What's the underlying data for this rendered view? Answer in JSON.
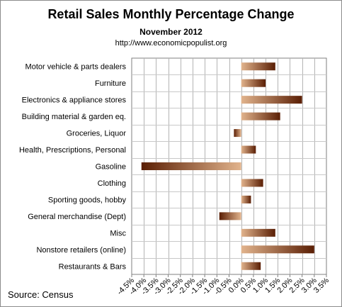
{
  "chart_data": {
    "type": "bar",
    "orientation": "horizontal",
    "title": "Retail Sales Monthly  Percentage Change",
    "subtitle": "November 2012",
    "source_url": "http://www.economicpopulist.org",
    "footer": "Source:  Census",
    "xlabel": "",
    "ylabel": "",
    "xlim": [
      -4.5,
      3.5
    ],
    "x_ticks": [
      -4.5,
      -4.0,
      -3.5,
      -3.0,
      -2.5,
      -2.0,
      -1.5,
      -1.0,
      -0.5,
      0.0,
      0.5,
      1.0,
      1.5,
      2.0,
      2.5,
      3.0,
      3.5
    ],
    "x_tick_labels": [
      "-4.5%",
      "-4.0%",
      "-3.5%",
      "-3.0%",
      "-2.5%",
      "-2.0%",
      "-1.5%",
      "-1.0%",
      "-0.5%",
      "0.0%",
      "0.5%",
      "1.0%",
      "1.5%",
      "2.0%",
      "2.5%",
      "3.0%",
      "3.5%"
    ],
    "grid": "vertical",
    "legend": "none",
    "categories": [
      "Motor vehicle & parts dealers",
      "Furniture",
      "Electronics & appliance stores",
      "Building material & garden eq.",
      "Groceries, Liquor",
      "Health, Prescriptions, Personal",
      "Gasoline",
      "Clothing",
      "Sporting goods, hobby",
      "General merchandise (Dept)",
      "Misc",
      "Nonstore retailers (online)",
      "Restaurants & Bars"
    ],
    "values": [
      1.4,
      1.0,
      2.5,
      1.6,
      -0.3,
      0.6,
      -4.1,
      0.9,
      0.4,
      -0.9,
      1.4,
      3.0,
      0.8
    ],
    "colors": {
      "bar_light": "#e2b48d",
      "bar_dark": "#5a1e04",
      "grid": "#b4b4b4",
      "frame": "#8c8c8c"
    }
  }
}
